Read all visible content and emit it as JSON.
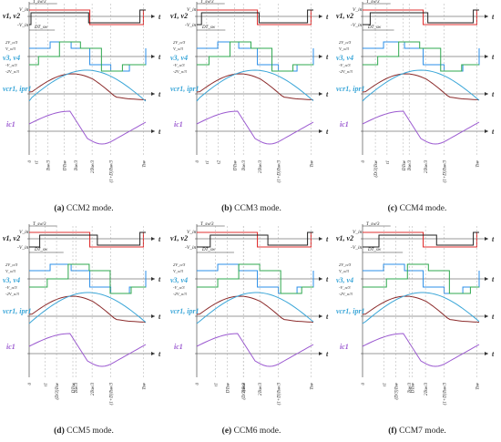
{
  "colors": {
    "red": "#e03131",
    "black": "#222222",
    "blue": "#2b8fe8",
    "green": "#2fa84f",
    "dark_red": "#8b2a2a",
    "cyan": "#3aa6d8",
    "purple": "#9b59d0",
    "pink": "#d8427a"
  },
  "common": {
    "axis_t": "t",
    "vin": "V_in",
    "vin_neg": "-V_in",
    "ts3": "T_sw/3",
    "dt": "DT_sw",
    "v4_levels": [
      "2V_o/3",
      "V_o/3",
      "-V_o/3",
      "-2V_o/3"
    ],
    "row_v12": "v1, v2",
    "row_v34": "v3, v4",
    "row_v34_fallback": "v3, v4",
    "row_vcr": "vcr1, ipr1",
    "row_ic": "ic1"
  },
  "panels": [
    {
      "letter": "(a)",
      "name": "CCM2 mode.",
      "ticks": [
        "0",
        "t1",
        "Tsw/3",
        "DTsw",
        "Tsw/3",
        "2Tsw/3",
        "(1+D)Tsw/3",
        "Tsw"
      ]
    },
    {
      "letter": "(b)",
      "name": "CCM3 mode.",
      "ticks": [
        "0",
        "t1",
        "t2",
        "DTsw",
        "Tsw/3",
        "2Tsw/3",
        "(1+D)Tsw/3",
        "Tsw"
      ]
    },
    {
      "letter": "(c)",
      "name": "CCM4 mode.",
      "ticks": [
        "0",
        "(D/3)Tsw",
        "t1",
        "DTsw",
        "Tsw/3",
        "2Tsw/3",
        "(1+D)Tsw/3",
        "Tsw"
      ]
    },
    {
      "letter": "(d)",
      "name": "CCM5 mode.",
      "ticks": [
        "0",
        "t1",
        "(D/3)Tsw",
        "DTsw",
        "Tsw/3",
        "2Tsw/3",
        "(1+D)Tsw/3",
        "Tsw"
      ]
    },
    {
      "letter": "(e)",
      "name": "CCM6 mode.",
      "ticks": [
        "0",
        "t1",
        "DTsw",
        "(D/3)Tsw",
        "Tsw/3",
        "2Tsw/3",
        "(1+D)Tsw/3",
        "Tsw"
      ]
    },
    {
      "letter": "(f)",
      "name": "CCM7 mode.",
      "ticks": [
        "0",
        "t1",
        "(D/3)Tsw",
        "DTsw",
        "Tsw/3",
        "2Tsw/3",
        "(1+D)Tsw/3",
        "Tsw"
      ]
    }
  ]
}
